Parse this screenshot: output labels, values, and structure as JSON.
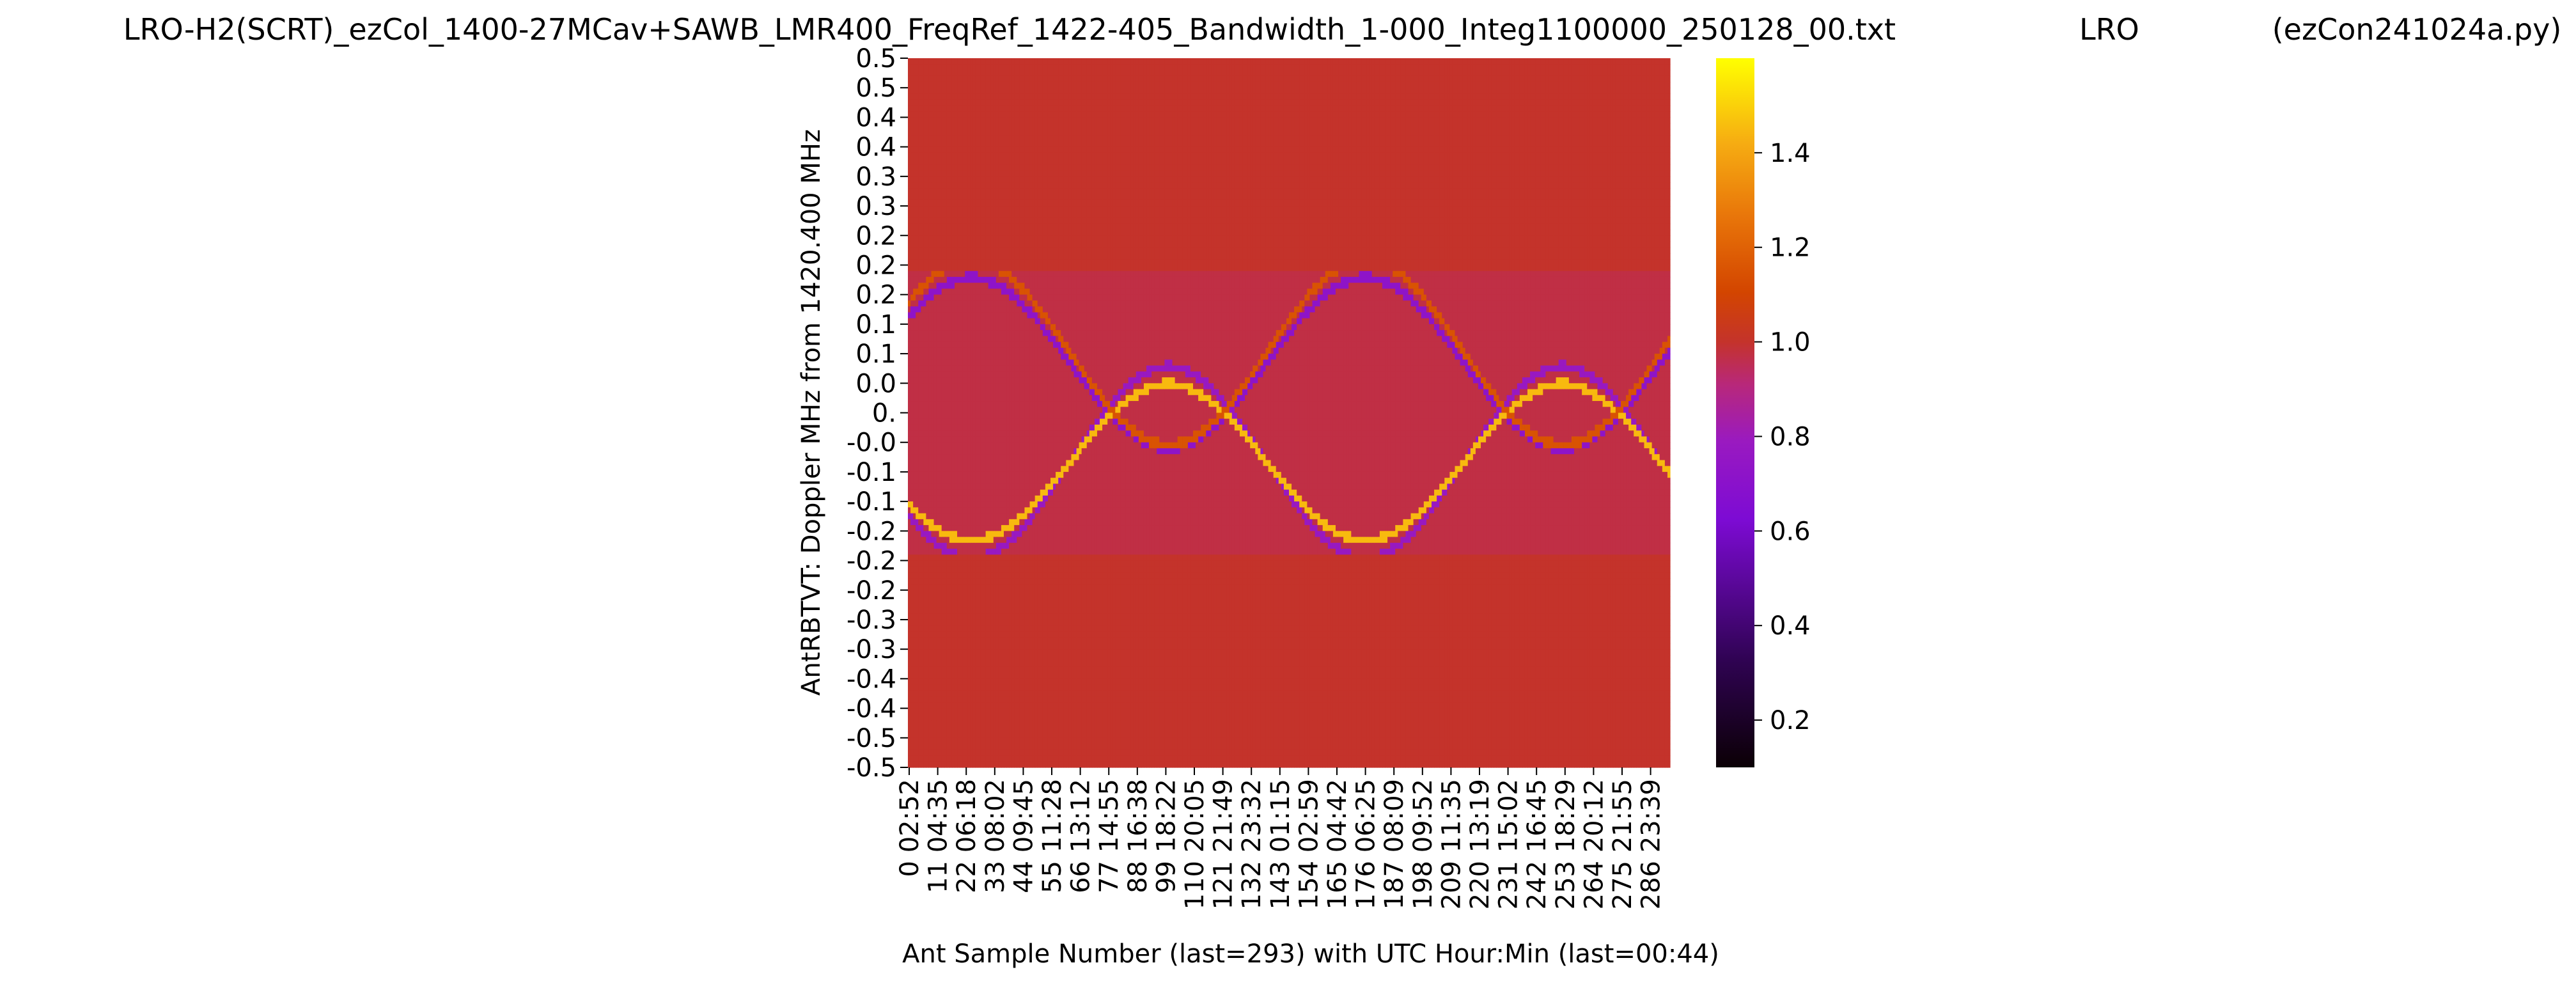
{
  "chart_data": {
    "type": "heatmap",
    "title": {
      "left": "LRO-H2(SCRT)_ezCol_1400-27MCav+SAWB_LMR400_FreqRef_1422-405_Bandwidth_1-000_Integ1100000_250128_00.txt",
      "center": "LRO",
      "right": "(ezCon241024a.py)"
    },
    "xlabel": "Ant Sample Number (last=293) with UTC Hour:Min (last=00:44)",
    "ylabel": "AntRBTVT:  Doppler MHz from 1420.400 MHz",
    "x_sample_ticks": [
      "0",
      "11",
      "22",
      "33",
      "44",
      "55",
      "66",
      "77",
      "88",
      "99",
      "110",
      "121",
      "132",
      "143",
      "154",
      "165",
      "176",
      "187",
      "198",
      "209",
      "220",
      "231",
      "242",
      "253",
      "264",
      "275",
      "286"
    ],
    "x_time_ticks": [
      "02:52",
      "04:35",
      "06:18",
      "08:02",
      "09:45",
      "11:28",
      "13:12",
      "14:55",
      "16:38",
      "18:22",
      "20:05",
      "21:49",
      "23:32",
      "01:15",
      "02:59",
      "04:42",
      "06:25",
      "08:09",
      "09:52",
      "11:35",
      "13:19",
      "15:02",
      "16:45",
      "18:29",
      "20:12",
      "21:55",
      "23:39"
    ],
    "y_ticks": [
      "0.5",
      "0.5",
      "0.4",
      "0.4",
      "0.3",
      "0.3",
      "0.2",
      "0.2",
      "0.2",
      "0.1",
      "0.1",
      "0.0",
      "0.",
      "-0.0",
      "-0.1",
      "-0.1",
      "-0.2",
      "-0.2",
      "-0.2",
      "-0.3",
      "-0.3",
      "-0.4",
      "-0.4",
      "-0.5",
      "-0.5"
    ],
    "colorbar": {
      "colormap": "gnuplot",
      "range": [
        0.1,
        1.6
      ],
      "ticks": [
        "1.4",
        "1.2",
        "1.0",
        "0.8",
        "0.6",
        "0.4",
        "0.2"
      ],
      "tick_values": [
        1.4,
        1.2,
        1.0,
        0.8,
        0.6,
        0.4,
        0.2
      ]
    },
    "n_samples": 294,
    "freq_range_mhz": [
      -0.5,
      0.5
    ],
    "data_band_mhz": [
      -0.2,
      0.2
    ],
    "fill_value_outside_band": 1.0,
    "background_level_in_band": 0.97,
    "tracks": [
      {
        "level": 0.72,
        "centre_mhz": 0.07,
        "amplitude_mhz": 0.12,
        "period_samples": 152,
        "phase_sample": 24
      },
      {
        "level": 0.78,
        "centre_mhz": -0.07,
        "amplitude_mhz": 0.135,
        "period_samples": 152,
        "phase_sample": 100
      },
      {
        "level": 1.45,
        "centre_mhz": -0.07,
        "amplitude_mhz": 0.11,
        "period_samples": 152,
        "phase_sample": 100
      },
      {
        "level": 1.15,
        "centre_mhz": 0.085,
        "amplitude_mhz": 0.13,
        "period_samples": 152,
        "phase_sample": 24
      }
    ],
    "grid": false,
    "legend": "colorbar-right"
  }
}
